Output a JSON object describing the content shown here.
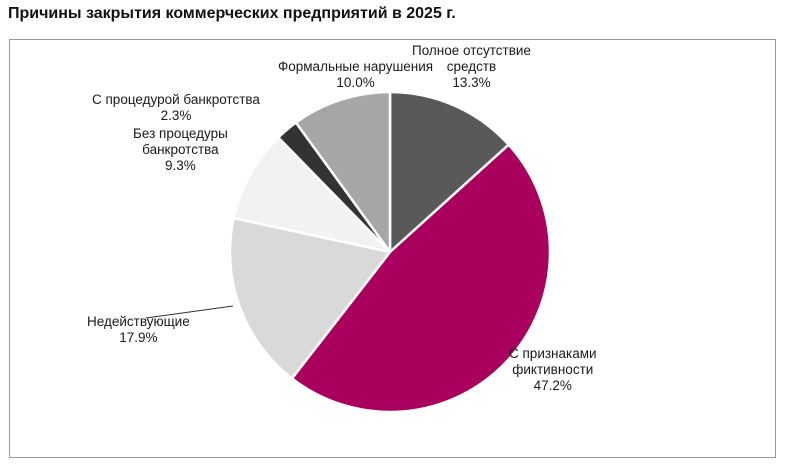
{
  "title": "Причины закрытия коммерческих предприятий в 2025 г.",
  "chart_data": {
    "type": "pie",
    "title": "Причины закрытия коммерческих предприятий в 2025 г.",
    "start_angle": "12 o'clock",
    "direction": "clockwise",
    "slices": [
      {
        "label": "Полное отсутствие средств",
        "value": 13.3,
        "display": "13.3%",
        "color": "#595959"
      },
      {
        "label": "С признаками фиктивности",
        "value": 47.2,
        "display": "47.2%",
        "color": "#a8005c"
      },
      {
        "label": "Недействующие",
        "value": 17.9,
        "display": "17.9%",
        "color": "#d9d9d9"
      },
      {
        "label": "Без процедуры банкротства",
        "value": 9.3,
        "display": "9.3%",
        "color": "#f2f2f2"
      },
      {
        "label": "С процедурой банкротства",
        "value": 2.3,
        "display": "2.3%",
        "color": "#333333"
      },
      {
        "label": "Формальные нарушения",
        "value": 10.0,
        "display": "10.0%",
        "color": "#a6a6a6"
      }
    ],
    "categories": [
      "Полное отсутствие средств",
      "С признаками фиктивности",
      "Недействующие",
      "Без процедуры банкротства",
      "С процедурой банкротства",
      "Формальные нарушения"
    ],
    "values": [
      13.3,
      47.2,
      17.9,
      9.3,
      2.3,
      10.0
    ],
    "unit": "%",
    "legend": "none (data labels outside slices)"
  },
  "labels": {
    "s0": {
      "line1": "Полное отсутствие",
      "line2": "средств",
      "pct": "13.3%"
    },
    "s1": {
      "line1": "С признаками",
      "line2": "фиктивности",
      "pct": "47.2%"
    },
    "s2": {
      "line1": "Недействующие",
      "pct": "17.9%"
    },
    "s3": {
      "line1": "Без процедуры",
      "line2": "банкротства",
      "pct": "9.3%"
    },
    "s4": {
      "line1": "С процедурой банкротства",
      "pct": "2.3%"
    },
    "s5": {
      "line1": "Формальные нарушения",
      "pct": "10.0%"
    }
  }
}
